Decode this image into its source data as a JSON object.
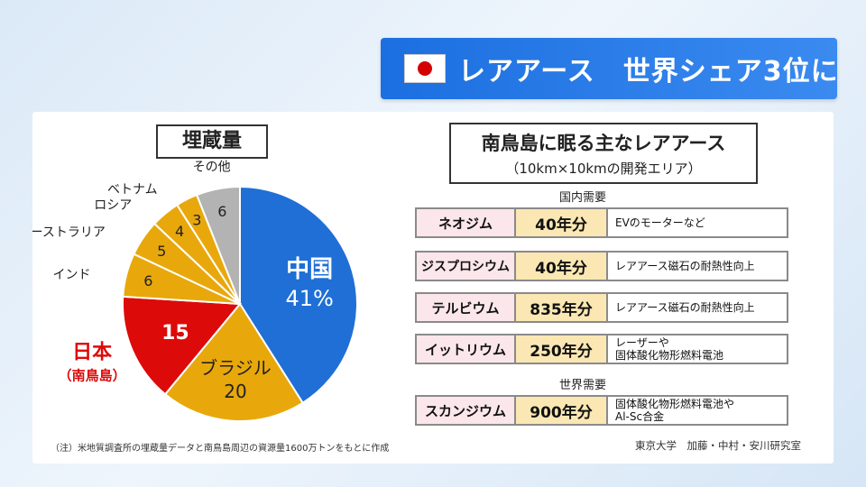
{
  "banner": {
    "title": "レアアース　世界シェア3位に"
  },
  "left": {
    "title": "埋蔵量",
    "note": "（注）米地質調査所の埋蔵量データと南鳥島周辺の資源量1600万トンをもとに作成"
  },
  "right": {
    "title": "南鳥島に眠る主なレアアース",
    "subtitle": "（10km×10kmの開発エリア）",
    "domestic_label": "国内需要",
    "world_label": "世界需要",
    "rows": [
      {
        "name": "ネオジム",
        "years": "40年分",
        "use": "EVのモーターなど"
      },
      {
        "name": "ジスプロシウム",
        "years": "40年分",
        "use": "レアアース磁石の耐熱性向上"
      },
      {
        "name": "テルビウム",
        "years": "835年分",
        "use": "レアアース磁石の耐熱性向上"
      },
      {
        "name": "イットリウム",
        "years": "250年分",
        "use": "レーザーや\n固体酸化物形燃料電池"
      },
      {
        "name": "スカンジウム",
        "years": "900年分",
        "use": "固体酸化物形燃料電池や\nAl-Sc合金"
      }
    ],
    "credit": "東京大学　加藤・中村・安川研究室"
  },
  "chart_data": {
    "type": "pie",
    "title": "埋蔵量",
    "slices": [
      {
        "label": "中国",
        "value": 41,
        "value_text": "41%",
        "color": "#1f6fd6"
      },
      {
        "label": "ブラジル",
        "value": 20,
        "value_text": "20",
        "color": "#e8a80c"
      },
      {
        "label": "日本",
        "sub_label": "（南鳥島）",
        "value": 15,
        "value_text": "15",
        "color": "#dd0a0a"
      },
      {
        "label": "インド",
        "value": 6,
        "value_text": "6",
        "color": "#e8a80c"
      },
      {
        "label": "オーストラリア",
        "value": 5,
        "value_text": "5",
        "color": "#e8a80c"
      },
      {
        "label": "ロシア",
        "value": 4,
        "value_text": "4",
        "color": "#e8a80c"
      },
      {
        "label": "ベトナム",
        "value": 3,
        "value_text": "3",
        "color": "#e8a80c"
      },
      {
        "label": "その他",
        "value": 6,
        "value_text": "6",
        "color": "#b3b3b3"
      }
    ]
  }
}
